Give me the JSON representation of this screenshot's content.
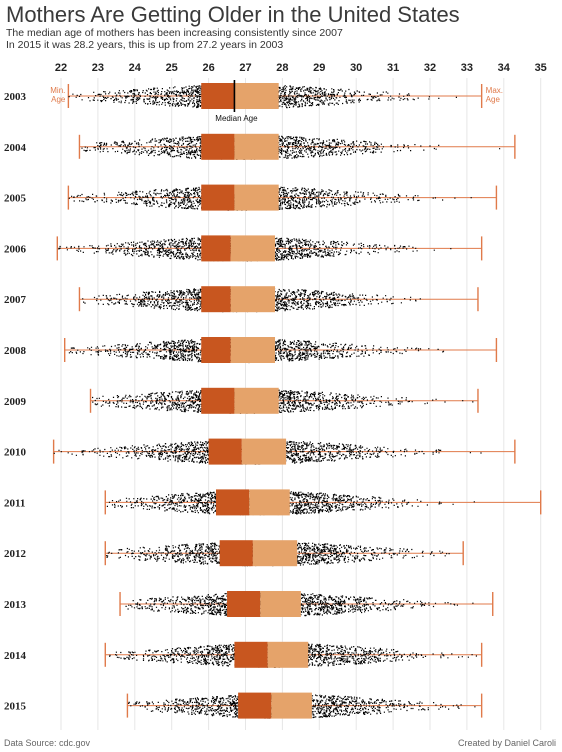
{
  "chart_data": {
    "type": "boxplot",
    "title": "Mothers Are Getting Older in the United States",
    "subtitle_lines": [
      "The median age of mothers has been increasing consistently since 2007",
      "In 2015 it was 28.2 years, this is up from 27.2 years in 2003"
    ],
    "x_ticks": [
      "22",
      "23",
      "24",
      "25",
      "26",
      "27",
      "28",
      "29",
      "30",
      "31",
      "32",
      "33",
      "34",
      "35"
    ],
    "xlim": [
      21.5,
      35.5
    ],
    "annotations": {
      "min": "Min.\nAge",
      "max": "Max.\nAge",
      "median": "Median Age"
    },
    "colors": {
      "whisker": "#e07a4a",
      "q_low": "#c8561f",
      "q_high": "#e5a36a",
      "points": "#000000",
      "median_line": "#000000"
    },
    "years": [
      {
        "year": "2003",
        "min": 22.2,
        "q1": 25.8,
        "median": 26.7,
        "q3": 27.9,
        "max": 33.4
      },
      {
        "year": "2004",
        "min": 22.5,
        "q1": 25.8,
        "median": 26.7,
        "q3": 27.9,
        "max": 34.3
      },
      {
        "year": "2005",
        "min": 22.2,
        "q1": 25.8,
        "median": 26.7,
        "q3": 27.9,
        "max": 33.8
      },
      {
        "year": "2006",
        "min": 21.9,
        "q1": 25.8,
        "median": 26.6,
        "q3": 27.8,
        "max": 33.4
      },
      {
        "year": "2007",
        "min": 22.5,
        "q1": 25.8,
        "median": 26.6,
        "q3": 27.8,
        "max": 33.3
      },
      {
        "year": "2008",
        "min": 22.1,
        "q1": 25.8,
        "median": 26.6,
        "q3": 27.8,
        "max": 33.8
      },
      {
        "year": "2009",
        "min": 22.8,
        "q1": 25.8,
        "median": 26.7,
        "q3": 27.9,
        "max": 33.3
      },
      {
        "year": "2010",
        "min": 21.8,
        "q1": 26.0,
        "median": 26.9,
        "q3": 28.1,
        "max": 34.3
      },
      {
        "year": "2011",
        "min": 23.2,
        "q1": 26.2,
        "median": 27.1,
        "q3": 28.2,
        "max": 35.0
      },
      {
        "year": "2012",
        "min": 23.2,
        "q1": 26.3,
        "median": 27.2,
        "q3": 28.4,
        "max": 32.9
      },
      {
        "year": "2013",
        "min": 23.6,
        "q1": 26.5,
        "median": 27.4,
        "q3": 28.5,
        "max": 33.7
      },
      {
        "year": "2014",
        "min": 23.2,
        "q1": 26.7,
        "median": 27.6,
        "q3": 28.7,
        "max": 33.4
      },
      {
        "year": "2015",
        "min": 23.8,
        "q1": 26.8,
        "median": 27.7,
        "q3": 28.8,
        "max": 33.4
      }
    ]
  },
  "footer": {
    "source": "Data Source: cdc.gov",
    "credit": "Created by Daniel Caroli"
  }
}
